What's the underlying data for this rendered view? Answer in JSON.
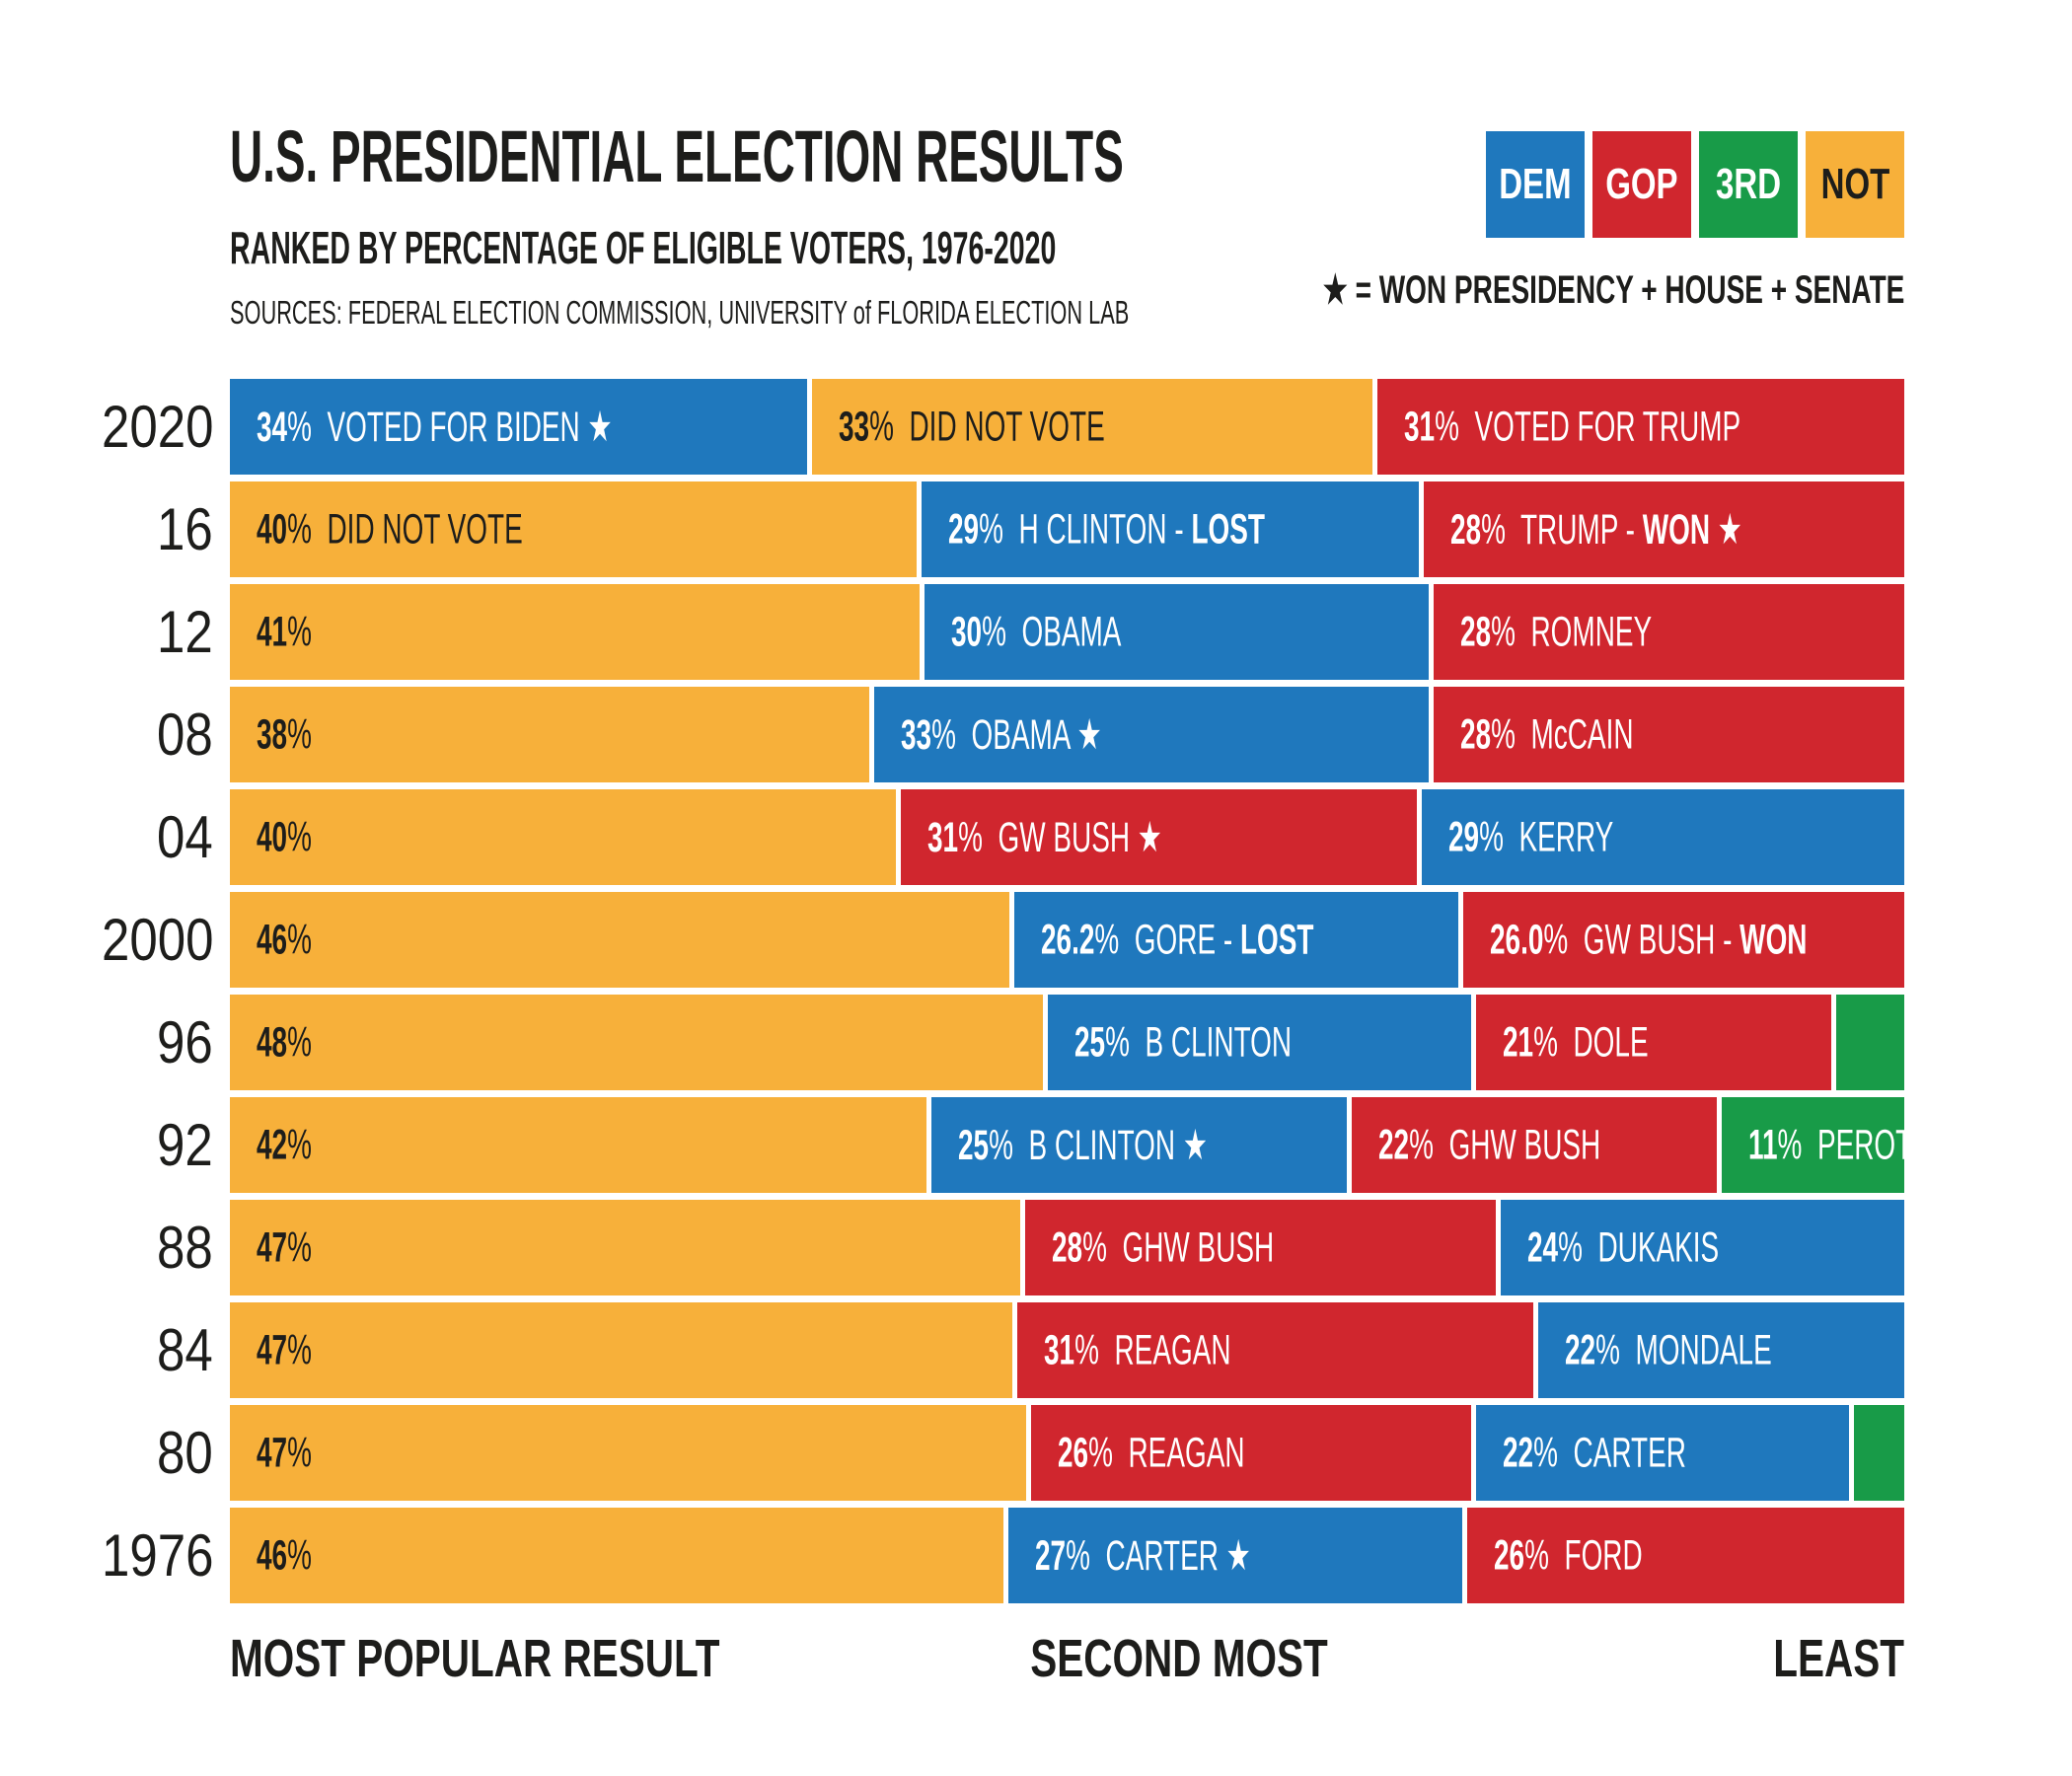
{
  "title": "U.S. PRESIDENTIAL ELECTION RESULTS",
  "subtitle": "RANKED BY PERCENTAGE OF ELIGIBLE VOTERS, 1976-2020",
  "sources": "SOURCES: FEDERAL ELECTION COMMISSION, UNIVERSITY of FLORIDA ELECTION LAB",
  "colors": {
    "dem": "#1f78bd",
    "gop": "#d0262e",
    "third": "#189b48",
    "not": "#f7b03a",
    "text_dark": "#1d1d1b",
    "text_light": "#ffffff",
    "background": "#ffffff"
  },
  "legend": {
    "items": [
      {
        "key": "dem",
        "label": "DEM"
      },
      {
        "key": "gop",
        "label": "GOP"
      },
      {
        "key": "third",
        "label": "3RD"
      },
      {
        "key": "not",
        "label": "NOT"
      }
    ],
    "star_icon": "★",
    "star_note": "= WON PRESIDENCY + HOUSE + SENATE"
  },
  "axis": {
    "left": "MOST POPULAR RESULT",
    "center": "SECOND MOST",
    "right": "LEAST"
  },
  "chart_data": {
    "type": "bar",
    "orientation": "horizontal-stacked",
    "unit": "% of eligible voters",
    "note": "each row normalized to full width; segments ordered most popular to least; unlabeled green slivers are third-party votes",
    "rank_labels": [
      "MOST POPULAR RESULT",
      "SECOND MOST",
      "LEAST"
    ],
    "rows": [
      {
        "year": "2020",
        "segments": [
          {
            "party": "dem",
            "value": 34,
            "num": "34",
            "name": "VOTED FOR BIDEN",
            "result": "",
            "star": true
          },
          {
            "party": "not",
            "value": 33,
            "num": "33",
            "name": "DID NOT VOTE",
            "result": "",
            "star": false
          },
          {
            "party": "gop",
            "value": 31,
            "num": "31",
            "name": "VOTED FOR TRUMP",
            "result": "",
            "star": false
          }
        ]
      },
      {
        "year": "16",
        "segments": [
          {
            "party": "not",
            "value": 40,
            "num": "40",
            "name": "DID NOT VOTE",
            "result": "",
            "star": false
          },
          {
            "party": "dem",
            "value": 29,
            "num": "29",
            "name": "H CLINTON -",
            "result": "LOST",
            "star": false
          },
          {
            "party": "gop",
            "value": 28,
            "num": "28",
            "name": "TRUMP -",
            "result": "WON",
            "star": true
          }
        ]
      },
      {
        "year": "12",
        "segments": [
          {
            "party": "not",
            "value": 41,
            "num": "41",
            "name": "",
            "result": "",
            "star": false
          },
          {
            "party": "dem",
            "value": 30,
            "num": "30",
            "name": "OBAMA",
            "result": "",
            "star": false
          },
          {
            "party": "gop",
            "value": 28,
            "num": "28",
            "name": "ROMNEY",
            "result": "",
            "star": false
          }
        ]
      },
      {
        "year": "08",
        "segments": [
          {
            "party": "not",
            "value": 38,
            "num": "38",
            "name": "",
            "result": "",
            "star": false
          },
          {
            "party": "dem",
            "value": 33,
            "num": "33",
            "name": "OBAMA",
            "result": "",
            "star": true
          },
          {
            "party": "gop",
            "value": 28,
            "num": "28",
            "name": "McCAIN",
            "result": "",
            "star": false
          }
        ]
      },
      {
        "year": "04",
        "segments": [
          {
            "party": "not",
            "value": 40,
            "num": "40",
            "name": "",
            "result": "",
            "star": false
          },
          {
            "party": "gop",
            "value": 31,
            "num": "31",
            "name": "GW BUSH",
            "result": "",
            "star": true
          },
          {
            "party": "dem",
            "value": 29,
            "num": "29",
            "name": "KERRY",
            "result": "",
            "star": false
          }
        ]
      },
      {
        "year": "2000",
        "segments": [
          {
            "party": "not",
            "value": 46,
            "num": "46",
            "name": "",
            "result": "",
            "star": false
          },
          {
            "party": "dem",
            "value": 26.2,
            "num": "26.2",
            "name": "GORE -",
            "result": "LOST",
            "star": false
          },
          {
            "party": "gop",
            "value": 26.0,
            "num": "26.0",
            "name": "GW BUSH -",
            "result": "WON",
            "star": false
          }
        ]
      },
      {
        "year": "96",
        "segments": [
          {
            "party": "not",
            "value": 48,
            "num": "48",
            "name": "",
            "result": "",
            "star": false
          },
          {
            "party": "dem",
            "value": 25,
            "num": "25",
            "name": "B CLINTON",
            "result": "",
            "star": false
          },
          {
            "party": "gop",
            "value": 21,
            "num": "21",
            "name": "DOLE",
            "result": "",
            "star": false
          },
          {
            "party": "third",
            "value": 4,
            "num": "",
            "name": "",
            "result": "",
            "star": false
          }
        ]
      },
      {
        "year": "92",
        "segments": [
          {
            "party": "not",
            "value": 42,
            "num": "42",
            "name": "",
            "result": "",
            "star": false
          },
          {
            "party": "dem",
            "value": 25,
            "num": "25",
            "name": "B CLINTON",
            "result": "",
            "star": true
          },
          {
            "party": "gop",
            "value": 22,
            "num": "22",
            "name": "GHW BUSH",
            "result": "",
            "star": false
          },
          {
            "party": "third",
            "value": 11,
            "num": "11",
            "name": "PEROT",
            "result": "",
            "star": false
          }
        ]
      },
      {
        "year": "88",
        "segments": [
          {
            "party": "not",
            "value": 47,
            "num": "47",
            "name": "",
            "result": "",
            "star": false
          },
          {
            "party": "gop",
            "value": 28,
            "num": "28",
            "name": "GHW BUSH",
            "result": "",
            "star": false
          },
          {
            "party": "dem",
            "value": 24,
            "num": "24",
            "name": "DUKAKIS",
            "result": "",
            "star": false
          }
        ]
      },
      {
        "year": "84",
        "segments": [
          {
            "party": "not",
            "value": 47,
            "num": "47",
            "name": "",
            "result": "",
            "star": false
          },
          {
            "party": "gop",
            "value": 31,
            "num": "31",
            "name": "REAGAN",
            "result": "",
            "star": false
          },
          {
            "party": "dem",
            "value": 22,
            "num": "22",
            "name": "MONDALE",
            "result": "",
            "star": false
          }
        ]
      },
      {
        "year": "80",
        "segments": [
          {
            "party": "not",
            "value": 47,
            "num": "47",
            "name": "",
            "result": "",
            "star": false
          },
          {
            "party": "gop",
            "value": 26,
            "num": "26",
            "name": "REAGAN",
            "result": "",
            "star": false
          },
          {
            "party": "dem",
            "value": 22,
            "num": "22",
            "name": "CARTER",
            "result": "",
            "star": false
          },
          {
            "party": "third",
            "value": 3,
            "num": "",
            "name": "",
            "result": "",
            "star": false
          }
        ]
      },
      {
        "year": "1976",
        "segments": [
          {
            "party": "not",
            "value": 46,
            "num": "46",
            "name": "",
            "result": "",
            "star": false
          },
          {
            "party": "dem",
            "value": 27,
            "num": "27",
            "name": "CARTER",
            "result": "",
            "star": true
          },
          {
            "party": "gop",
            "value": 26,
            "num": "26",
            "name": "FORD",
            "result": "",
            "star": false
          }
        ]
      }
    ]
  }
}
